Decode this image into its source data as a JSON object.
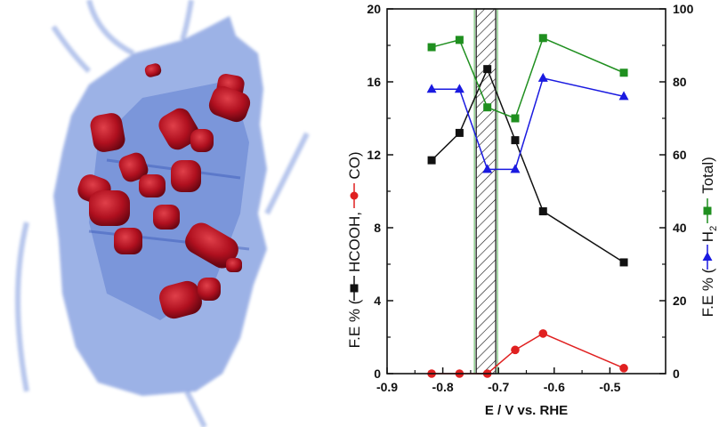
{
  "chart_data": {
    "type": "line",
    "xlabel": "E / V vs. RHE",
    "xlim": [
      -0.9,
      -0.4
    ],
    "x_ticks": [
      "-0.9",
      "-0.8",
      "-0.7",
      "-0.6",
      "-0.5"
    ],
    "y_left": {
      "label_prefix": "F.E % (",
      "label_hcooh": "HCOOH,",
      "label_co": "CO)",
      "ylim": [
        0,
        20
      ],
      "ticks": [
        "0",
        "4",
        "8",
        "12",
        "16",
        "20"
      ]
    },
    "y_right": {
      "label_prefix": "F.E % (",
      "label_h2": "H",
      "label_h2_sub": "2",
      "label_total": "Total)",
      "ylim": [
        0,
        100
      ],
      "ticks": [
        "0",
        "20",
        "40",
        "60",
        "80",
        "100"
      ]
    },
    "shaded_region": [
      -0.74,
      -0.705
    ],
    "series": [
      {
        "axis": "left",
        "marker": "square",
        "color": "#111111",
        "x": [
          -0.82,
          -0.77,
          -0.72,
          -0.67,
          -0.62,
          -0.475
        ],
        "values": [
          11.7,
          13.2,
          16.7,
          12.8,
          8.9,
          6.1
        ]
      },
      {
        "axis": "left",
        "marker": "circle",
        "color": "#e02020",
        "x": [
          -0.82,
          -0.77,
          -0.72,
          -0.67,
          -0.62,
          -0.475
        ],
        "values": [
          0.0,
          0.0,
          0.0,
          1.3,
          2.2,
          0.3
        ]
      },
      {
        "axis": "right",
        "marker": "triangle",
        "color": "#1a1ae0",
        "x": [
          -0.82,
          -0.77,
          -0.72,
          -0.67,
          -0.62,
          -0.475
        ],
        "values": [
          78,
          78,
          56,
          56,
          81,
          76
        ]
      },
      {
        "axis": "right",
        "marker": "square",
        "color": "#1f8f1f",
        "x": [
          -0.82,
          -0.77,
          -0.72,
          -0.67,
          -0.62,
          -0.475
        ],
        "values": [
          89.5,
          91.5,
          73,
          70,
          92,
          82.5
        ]
      }
    ]
  },
  "image": {
    "subject": "particle-tomography-render",
    "membrane_color": "#5b7fd6",
    "particle_color": "#b0101f"
  }
}
